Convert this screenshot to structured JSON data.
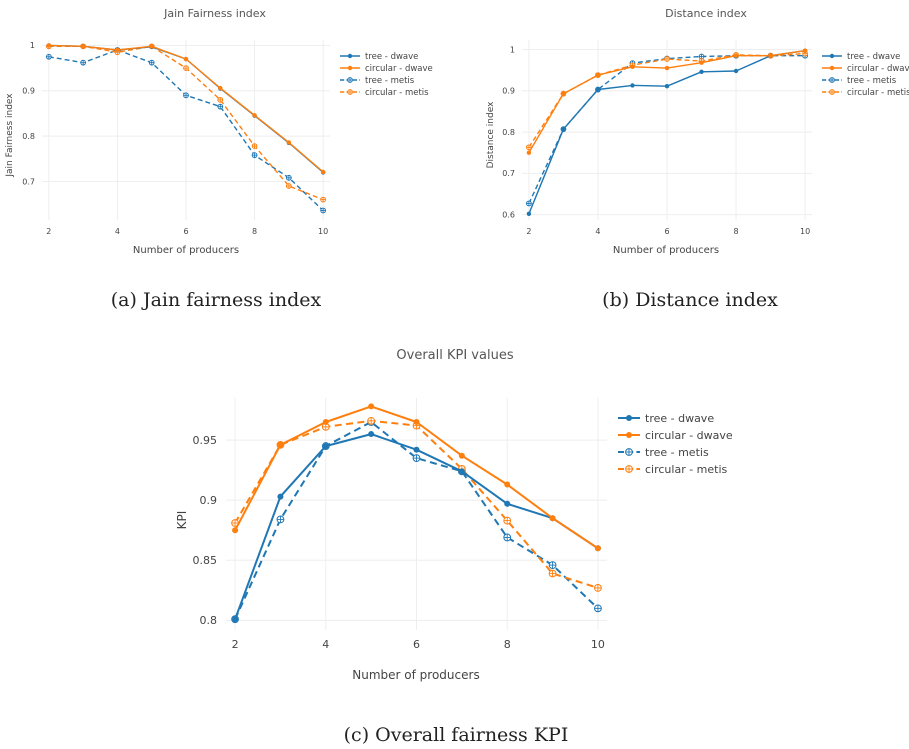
{
  "colors": {
    "tree": "#1f77b4",
    "circular": "#ff7f0e",
    "grid": "#eeeeee"
  },
  "captions": {
    "a": "(a) Jain fairness index",
    "b": "(b) Distance index",
    "c": "(c) Overall fairness KPI"
  },
  "chart_data": [
    {
      "type": "line",
      "title": "Jain Fairness index",
      "xlabel": "Number of producers",
      "ylabel": "Jain Fairness index",
      "xlim": [
        1.8,
        10.2
      ],
      "ylim": [
        0.615,
        1.012
      ],
      "xticks": [
        2,
        4,
        6,
        8,
        10
      ],
      "yticks": [
        0.7,
        0.8,
        0.9,
        1
      ],
      "ytick_labels": [
        "0.7",
        "0.8",
        "0.9",
        "1"
      ],
      "grid": true,
      "legend": "top-right",
      "x": [
        2,
        3,
        4,
        5,
        6,
        7,
        8,
        9,
        10
      ],
      "series": [
        {
          "name": "tree - dwave",
          "color": "#1f77b4",
          "style": "solid",
          "marker": "dot",
          "values": [
            1.0,
            0.998,
            0.99,
            0.997,
            0.97,
            0.905,
            0.845,
            0.785,
            0.72
          ]
        },
        {
          "name": "circular - dwave",
          "color": "#ff7f0e",
          "style": "solid",
          "marker": "dot",
          "values": [
            1.0,
            0.998,
            0.99,
            0.998,
            0.97,
            0.906,
            0.846,
            0.786,
            0.721
          ]
        },
        {
          "name": "tree - metis",
          "color": "#1f77b4",
          "style": "dash",
          "marker": "circle-cross",
          "values": [
            0.975,
            0.962,
            0.99,
            0.962,
            0.89,
            0.865,
            0.758,
            0.708,
            0.636
          ]
        },
        {
          "name": "circular - metis",
          "color": "#ff7f0e",
          "style": "dash",
          "marker": "circle-cross",
          "values": [
            0.998,
            0.998,
            0.985,
            0.998,
            0.95,
            0.88,
            0.778,
            0.69,
            0.66
          ]
        }
      ]
    },
    {
      "type": "line",
      "title": "Distance index",
      "xlabel": "Number of producers",
      "ylabel": "Distance index",
      "xlim": [
        1.8,
        10.2
      ],
      "ylim": [
        0.587,
        1.023
      ],
      "xticks": [
        2,
        4,
        6,
        8,
        10
      ],
      "yticks": [
        0.6,
        0.7,
        0.8,
        0.9,
        1
      ],
      "ytick_labels": [
        "0.6",
        "0.7",
        "0.8",
        "0.9",
        "1"
      ],
      "grid": true,
      "legend": "top-right",
      "x": [
        2,
        3,
        4,
        5,
        6,
        7,
        8,
        9,
        10
      ],
      "series": [
        {
          "name": "tree - dwave",
          "color": "#1f77b4",
          "style": "solid",
          "marker": "dot",
          "values": [
            0.602,
            0.807,
            0.903,
            0.913,
            0.911,
            0.946,
            0.948,
            0.985,
            0.997
          ]
        },
        {
          "name": "circular - dwave",
          "color": "#ff7f0e",
          "style": "solid",
          "marker": "dot",
          "values": [
            0.75,
            0.893,
            0.938,
            0.958,
            0.955,
            0.968,
            0.985,
            0.985,
            0.997
          ]
        },
        {
          "name": "tree - metis",
          "color": "#1f77b4",
          "style": "dash",
          "marker": "circle-cross",
          "values": [
            0.627,
            0.807,
            0.903,
            0.967,
            0.978,
            0.983,
            0.985,
            0.985,
            0.985
          ]
        },
        {
          "name": "circular - metis",
          "color": "#ff7f0e",
          "style": "dash",
          "marker": "circle-cross",
          "values": [
            0.763,
            0.893,
            0.938,
            0.962,
            0.977,
            0.972,
            0.987,
            0.985,
            0.99
          ]
        }
      ]
    },
    {
      "type": "line",
      "title": "Overall KPI values",
      "xlabel": "Number of producers",
      "ylabel": "KPI",
      "xlim": [
        1.8,
        10.2
      ],
      "ylim": [
        0.792,
        0.985
      ],
      "xticks": [
        2,
        4,
        6,
        8,
        10
      ],
      "yticks": [
        0.8,
        0.85,
        0.9,
        0.95
      ],
      "ytick_labels": [
        "0.8",
        "0.85",
        "0.9",
        "0.95"
      ],
      "grid": true,
      "legend": "top-right",
      "x": [
        2,
        3,
        4,
        5,
        6,
        7,
        8,
        9,
        10
      ],
      "series": [
        {
          "name": "tree - dwave",
          "color": "#1f77b4",
          "style": "solid",
          "marker": "dot",
          "values": [
            0.801,
            0.903,
            0.945,
            0.955,
            0.942,
            0.924,
            0.897,
            0.885,
            0.86
          ]
        },
        {
          "name": "circular - dwave",
          "color": "#ff7f0e",
          "style": "solid",
          "marker": "dot",
          "values": [
            0.875,
            0.946,
            0.965,
            0.978,
            0.965,
            0.937,
            0.913,
            0.885,
            0.86
          ]
        },
        {
          "name": "tree - metis",
          "color": "#1f77b4",
          "style": "dash",
          "marker": "circle-cross",
          "values": [
            0.801,
            0.884,
            0.945,
            0.965,
            0.935,
            0.924,
            0.869,
            0.846,
            0.81
          ]
        },
        {
          "name": "circular - metis",
          "color": "#ff7f0e",
          "style": "dash",
          "marker": "circle-cross",
          "values": [
            0.881,
            0.946,
            0.961,
            0.966,
            0.962,
            0.926,
            0.883,
            0.839,
            0.827
          ]
        }
      ]
    }
  ]
}
